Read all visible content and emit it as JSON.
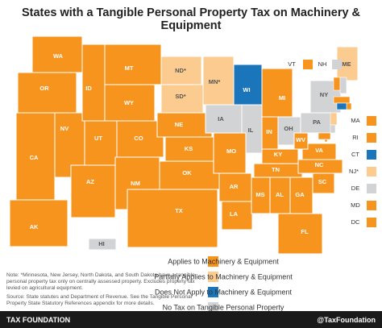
{
  "title": "States with a Tangible Personal Property Tax on Machinery & Equipment",
  "map": {
    "states": [
      {
        "label": "WA",
        "color": "#f7941d"
      },
      {
        "label": "OR",
        "color": "#f7941d"
      },
      {
        "label": "CA",
        "color": "#f7941d"
      },
      {
        "label": "NV",
        "color": "#f7941d"
      },
      {
        "label": "ID",
        "color": "#f7941d"
      },
      {
        "label": "MT",
        "color": "#f7941d"
      },
      {
        "label": "WY",
        "color": "#f7941d"
      },
      {
        "label": "UT",
        "color": "#f7941d"
      },
      {
        "label": "AZ",
        "color": "#f7941d"
      },
      {
        "label": "CO",
        "color": "#f7941d"
      },
      {
        "label": "NM",
        "color": "#f7941d"
      },
      {
        "label": "ND*",
        "color": "#fbcb8f"
      },
      {
        "label": "SD*",
        "color": "#fbcb8f"
      },
      {
        "label": "NE",
        "color": "#f7941d"
      },
      {
        "label": "KS",
        "color": "#f7941d"
      },
      {
        "label": "OK",
        "color": "#f7941d"
      },
      {
        "label": "TX",
        "color": "#f7941d"
      },
      {
        "label": "MN*",
        "color": "#fbcb8f"
      },
      {
        "label": "WI",
        "color": "#1b75bb"
      },
      {
        "label": "IA",
        "color": "#d1d3d4"
      },
      {
        "label": "IL",
        "color": "#d1d3d4"
      },
      {
        "label": "MO",
        "color": "#f7941d"
      },
      {
        "label": "AR",
        "color": "#f7941d"
      },
      {
        "label": "LA",
        "color": "#f7941d"
      },
      {
        "label": "MI",
        "color": "#f7941d"
      },
      {
        "label": "IN",
        "color": "#f7941d"
      },
      {
        "label": "OH",
        "color": "#d1d3d4"
      },
      {
        "label": "KY",
        "color": "#f7941d"
      },
      {
        "label": "TN",
        "color": "#f7941d"
      },
      {
        "label": "MS",
        "color": "#f7941d"
      },
      {
        "label": "AL",
        "color": "#f7941d"
      },
      {
        "label": "GA",
        "color": "#f7941d"
      },
      {
        "label": "FL",
        "color": "#f7941d"
      },
      {
        "label": "SC",
        "color": "#f7941d"
      },
      {
        "label": "NC",
        "color": "#f7941d"
      },
      {
        "label": "VA",
        "color": "#f7941d"
      },
      {
        "label": "WV",
        "color": "#f7941d"
      },
      {
        "label": "PA",
        "color": "#d1d3d4"
      },
      {
        "label": "NY",
        "color": "#d1d3d4"
      },
      {
        "label": "ME",
        "color": "#fbcb8f"
      },
      {
        "label": "AK",
        "color": "#f7941d"
      },
      {
        "label": "HI",
        "color": "#d1d3d4"
      }
    ],
    "insets": [
      {
        "label": "VT",
        "color": "#f7941d"
      },
      {
        "label": "NH",
        "color": "#d1d3d4"
      },
      {
        "label": "MA",
        "color": "#f7941d"
      },
      {
        "label": "RI",
        "color": "#f7941d"
      },
      {
        "label": "CT",
        "color": "#1b75bb"
      },
      {
        "label": "NJ*",
        "color": "#fbcb8f"
      },
      {
        "label": "DE",
        "color": "#d1d3d4"
      },
      {
        "label": "MD",
        "color": "#f7941d"
      },
      {
        "label": "DC",
        "color": "#f7941d"
      }
    ]
  },
  "legend": [
    {
      "label": "Applies to Machinery & Equipment",
      "color": "#f7941d"
    },
    {
      "label": "Partially Applies to Machinery & Equipment",
      "color": "#fbcb8f"
    },
    {
      "label": "Does Not Apply to Machinery & Equipment",
      "color": "#1b75bb"
    },
    {
      "label": "No Tax on Tangible Personal Property",
      "color": "#d1d3d4"
    }
  ],
  "note": "Note: *Minnesota, New Jersey, North Dakota, and South Dakota have a tangible personal property tax only on centrally assessed property. Excludes property tax levied on agricultural equipment.",
  "source": "Source: State statutes and Department of Revenue. See the Tangible Personal Property State Statutory References appendix for more details.",
  "footer": {
    "brand": "TAX FOUNDATION",
    "handle": "@TaxFoundation"
  }
}
